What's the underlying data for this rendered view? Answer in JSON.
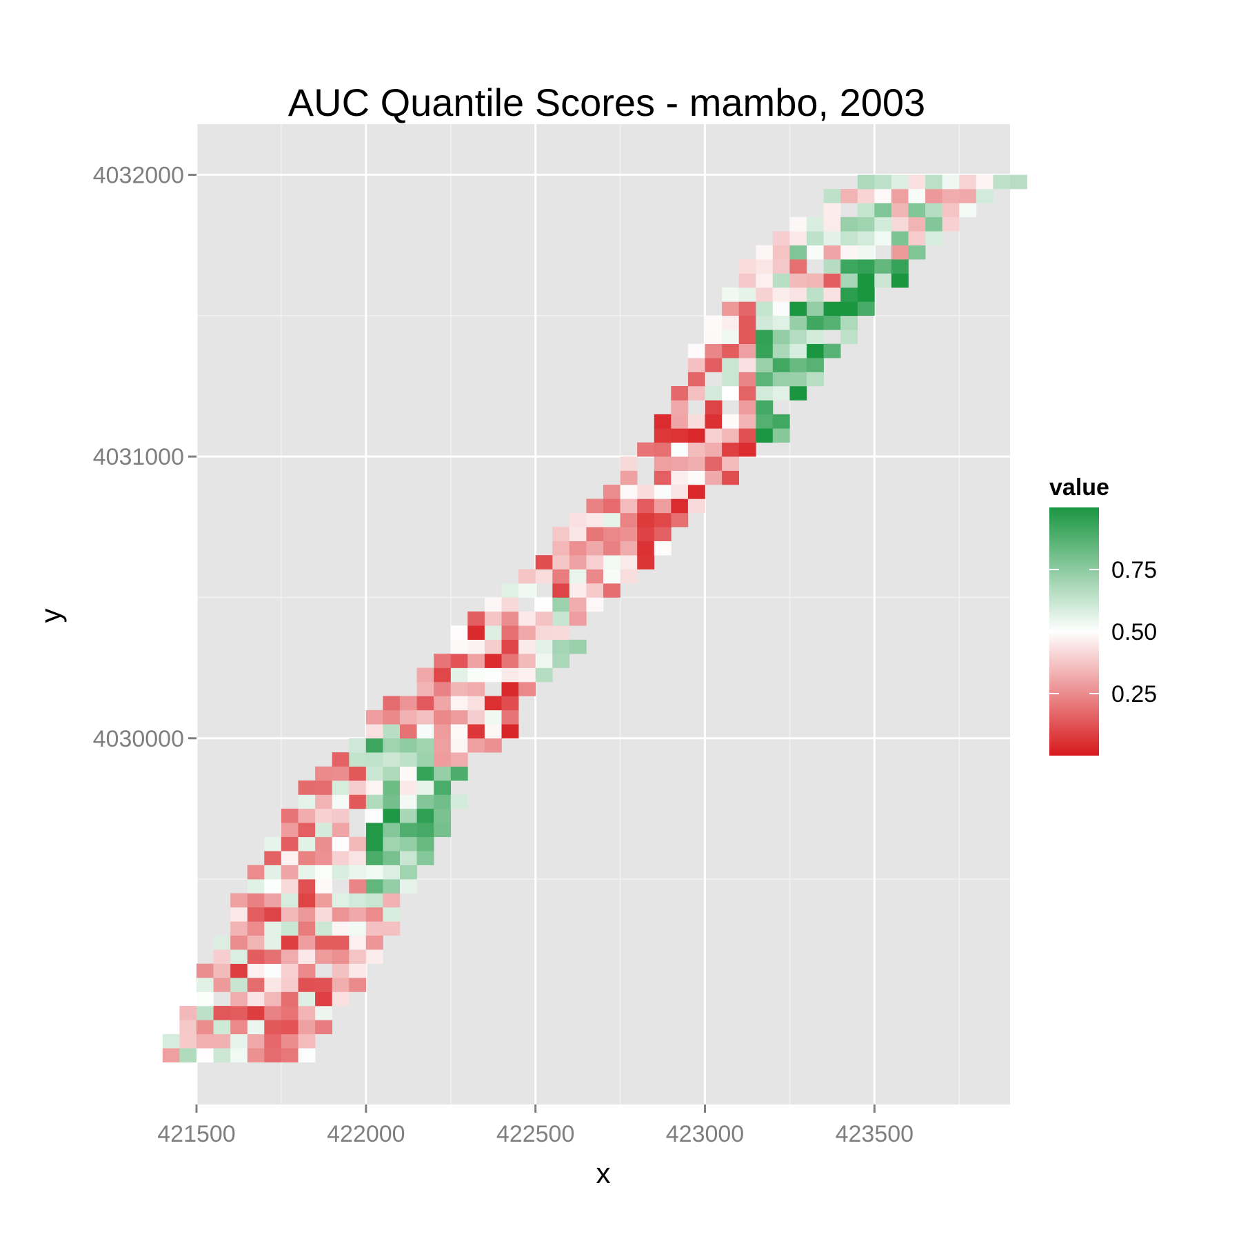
{
  "chart_data": {
    "type": "heatmap",
    "title": "AUC Quantile Scores - mambo, 2003",
    "xlabel": "x",
    "ylabel": "y",
    "xlim": [
      421500,
      423900
    ],
    "ylim": [
      4028700,
      4032180
    ],
    "x_ticks": [
      421500,
      422000,
      422500,
      423000,
      423500
    ],
    "x_tick_labels": [
      "421500",
      "422000",
      "422500",
      "423000",
      "423500"
    ],
    "y_ticks": [
      4030000,
      4031000,
      4032000
    ],
    "y_tick_labels": [
      "4030000",
      "4031000",
      "4032000"
    ],
    "grid": true,
    "legend": {
      "title": "value",
      "position": "right",
      "range": [
        0,
        1
      ],
      "ticks": [
        0.25,
        0.5,
        0.75
      ],
      "tick_labels": [
        "0.25",
        "0.50",
        "0.75"
      ],
      "colors": {
        "low": "#d7191c",
        "mid": "#ffffff",
        "high": "#1a9641"
      }
    },
    "cell_size": 50,
    "band": {
      "description_points": [
        {
          "x": 421600,
          "y": 4028850
        },
        {
          "x": 422050,
          "y": 4029850
        },
        {
          "x": 422500,
          "y": 4030450
        },
        {
          "x": 423000,
          "y": 4031050
        },
        {
          "x": 423350,
          "y": 4031700
        },
        {
          "x": 423700,
          "y": 4032000
        }
      ]
    },
    "regions": [
      {
        "x_range": [
          421600,
          422350
        ],
        "y_range": [
          4028800,
          4029450
        ],
        "mean": 0.35
      },
      {
        "x_range": [
          422000,
          422300
        ],
        "y_range": [
          4029450,
          4029950
        ],
        "mean": 0.72
      },
      {
        "x_range": [
          422200,
          422700
        ],
        "y_range": [
          4029900,
          4030600
        ],
        "mean": 0.3
      },
      {
        "x_range": [
          422450,
          422800
        ],
        "y_range": [
          4030000,
          4030450
        ],
        "mean": 0.5
      },
      {
        "x_range": [
          422550,
          423100
        ],
        "y_range": [
          4030500,
          4031150
        ],
        "mean": 0.3
      },
      {
        "x_range": [
          423150,
          423600
        ],
        "y_range": [
          4030850,
          4031500
        ],
        "mean": 0.78
      },
      {
        "x_range": [
          423400,
          423600
        ],
        "y_range": [
          4031350,
          4031700
        ],
        "mean": 0.85
      },
      {
        "x_range": [
          423250,
          423800
        ],
        "y_range": [
          4031700,
          4032050
        ],
        "mean": 0.55
      }
    ]
  }
}
